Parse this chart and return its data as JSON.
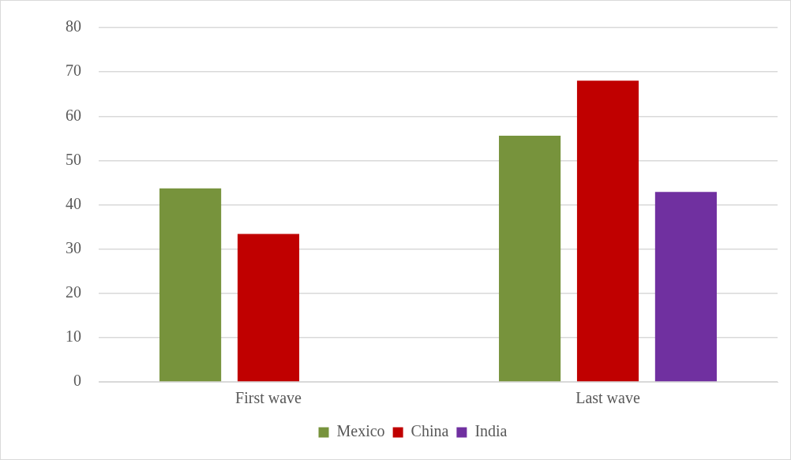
{
  "chart_data": {
    "type": "bar",
    "categories": [
      "First wave",
      "Last wave"
    ],
    "series": [
      {
        "name": "Mexico",
        "color": "#77933c",
        "values": [
          43.7,
          55.6
        ]
      },
      {
        "name": "China",
        "color": "#c00000",
        "values": [
          33.4,
          68.0
        ]
      },
      {
        "name": "India",
        "color": "#7030a0",
        "values": [
          null,
          42.9
        ]
      }
    ],
    "ylim": [
      0,
      80
    ],
    "yticks": [
      0,
      10,
      20,
      30,
      40,
      50,
      60,
      70,
      80
    ],
    "grid": "y",
    "legend": "bottom"
  }
}
